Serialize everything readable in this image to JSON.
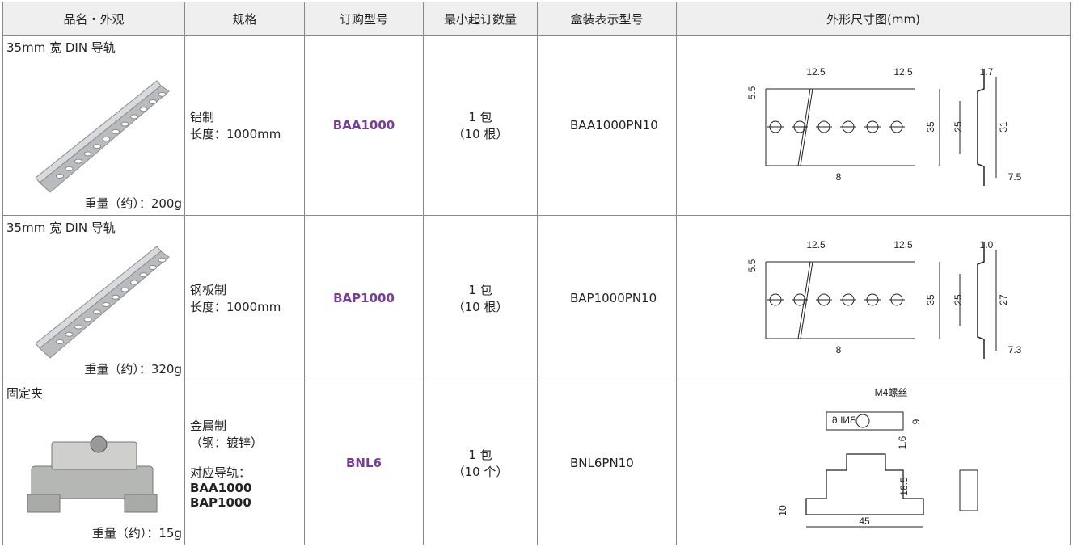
{
  "table": {
    "headers": [
      "品名・外观",
      "规格",
      "订购型号",
      "最小起订数量",
      "盒装表示型号",
      "外形尺寸图(mm)"
    ],
    "rows": [
      {
        "name": "35mm 宽 DIN 导轨",
        "weight": "重量（约）：200g",
        "spec": [
          "铝制",
          "长度：1000mm"
        ],
        "order_no": "BAA1000",
        "min_qty": [
          "1 包",
          "（10 根）"
        ],
        "box_model": "BAA1000PN10",
        "dims": [
          "12.5",
          "12.5",
          "1.7",
          "5.5",
          "35",
          "25",
          "31",
          "8",
          "7.5"
        ]
      },
      {
        "name": "35mm 宽 DIN 导轨",
        "weight": "重量（约）：320g",
        "spec": [
          "钢板制",
          "长度：1000mm"
        ],
        "order_no": "BAP1000",
        "min_qty": [
          "1 包",
          "（10 根）"
        ],
        "box_model": "BAP1000PN10",
        "dims": [
          "12.5",
          "12.5",
          "1.0",
          "5.5",
          "35",
          "25",
          "27",
          "8",
          "7.3"
        ]
      },
      {
        "name": "固定夹",
        "weight": "重量（约）：15g",
        "spec": [
          "金属制",
          "（钢：镀锌）",
          "对应导轨：",
          "BAA1000",
          "BAP1000"
        ],
        "order_no": "BNL6",
        "min_qty": [
          "1 包",
          "（10 个）"
        ],
        "box_model": "BNL6PN10",
        "dims": [
          "M4螺丝",
          "BNL6",
          "9",
          "1.6",
          "18.5",
          "10",
          "45"
        ]
      }
    ]
  }
}
